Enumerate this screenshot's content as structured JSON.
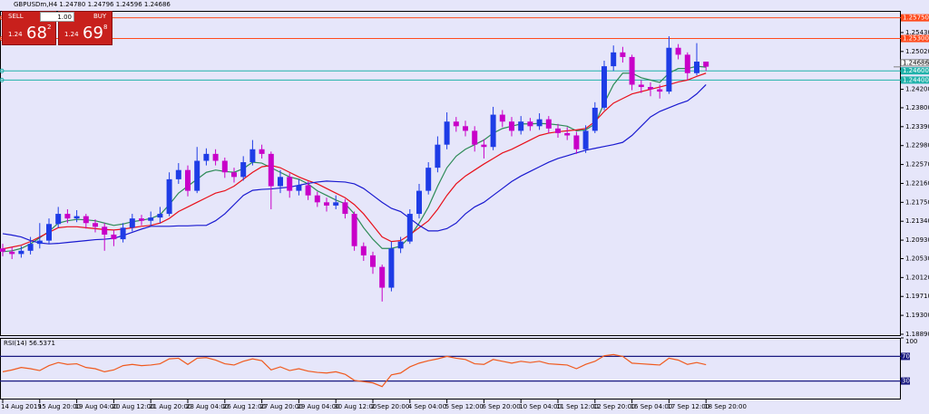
{
  "trade_panel": {
    "sell_label": "SELL",
    "buy_label": "BUY",
    "lot": "1.00",
    "sell_price": {
      "big_figure": "1.24",
      "pips": "68",
      "fraction": "2"
    },
    "buy_price": {
      "big_figure": "1.24",
      "pips": "69",
      "fraction": "8"
    }
  },
  "chart_data": [
    {
      "type": "candlestick",
      "title": "GBPUSDm,H4  1.24780 1.24796 1.24596 1.24686",
      "categories": [
        "14 Aug 2019",
        null,
        null,
        null,
        "15 Aug 20:00",
        null,
        null,
        null,
        "19 Aug 04:00",
        null,
        null,
        null,
        "20 Aug 12:00",
        null,
        null,
        null,
        "21 Aug 20:00",
        null,
        null,
        null,
        "23 Aug 04:00",
        null,
        null,
        null,
        "26 Aug 12:00",
        null,
        null,
        null,
        "27 Aug 20:00",
        null,
        null,
        null,
        "29 Aug 04:00",
        null,
        null,
        null,
        "30 Aug 12:00",
        null,
        null,
        null,
        "2 Sep 20:00",
        null,
        null,
        null,
        "4 Sep 04:00",
        null,
        null,
        null,
        "5 Sep 12:00",
        null,
        null,
        null,
        "6 Sep 20:00",
        null,
        null,
        null,
        "10 Sep 04:00",
        null,
        null,
        null,
        "11 Sep 12:00",
        null,
        null,
        null,
        "12 Sep 20:00",
        null,
        null,
        null,
        "16 Sep 04:00",
        null,
        null,
        null,
        "17 Sep 12:00",
        null,
        null,
        null,
        "18 Sep 20:00"
      ],
      "open": [
        1.2075,
        1.2068,
        1.2063,
        1.207,
        1.2085,
        1.2092,
        1.2128,
        1.215,
        1.214,
        1.2145,
        1.213,
        1.2122,
        1.2105,
        1.2095,
        1.212,
        1.214,
        1.2135,
        1.2142,
        1.215,
        1.2225,
        1.2245,
        1.22,
        1.2265,
        1.228,
        1.2265,
        1.224,
        1.223,
        1.2262,
        1.229,
        1.228,
        1.221,
        1.223,
        1.22,
        1.2212,
        1.219,
        1.2175,
        1.2168,
        1.2175,
        1.215,
        1.208,
        1.206,
        1.2035,
        1.199,
        1.2075,
        1.209,
        1.215,
        1.22,
        1.225,
        1.23,
        1.235,
        1.234,
        1.233,
        1.23,
        1.2295,
        1.2365,
        1.235,
        1.233,
        1.235,
        1.234,
        1.2355,
        1.2335,
        1.2325,
        1.232,
        1.229,
        1.233,
        1.238,
        1.247,
        1.25,
        1.249,
        1.243,
        1.2425,
        1.242,
        1.2415,
        1.251,
        1.2495,
        1.2455,
        1.248
      ],
      "high": [
        1.2085,
        1.2078,
        1.208,
        1.21,
        1.213,
        1.214,
        1.2165,
        1.216,
        1.2158,
        1.215,
        1.2138,
        1.213,
        1.2115,
        1.213,
        1.215,
        1.2148,
        1.2155,
        1.2165,
        1.224,
        1.226,
        1.2255,
        1.2295,
        1.2292,
        1.229,
        1.2272,
        1.225,
        1.2275,
        1.231,
        1.23,
        1.2285,
        1.2245,
        1.2238,
        1.2225,
        1.222,
        1.2198,
        1.2185,
        1.219,
        1.2182,
        1.2155,
        1.2088,
        1.2068,
        1.204,
        1.209,
        1.21,
        1.216,
        1.2215,
        1.2262,
        1.2318,
        1.237,
        1.236,
        1.2352,
        1.234,
        1.2312,
        1.2382,
        1.2375,
        1.236,
        1.2362,
        1.2358,
        1.2368,
        1.2362,
        1.2345,
        1.2338,
        1.2328,
        1.2342,
        1.2392,
        1.2482,
        1.2515,
        1.2512,
        1.2495,
        1.244,
        1.2435,
        1.243,
        1.2535,
        1.2518,
        1.25,
        1.252,
        1.248
      ],
      "low": [
        1.2058,
        1.2052,
        1.2055,
        1.2062,
        1.2075,
        1.2085,
        1.212,
        1.213,
        1.2132,
        1.2118,
        1.211,
        1.207,
        1.208,
        1.2088,
        1.2112,
        1.2125,
        1.2122,
        1.213,
        1.2145,
        1.2215,
        1.2188,
        1.2195,
        1.2255,
        1.2255,
        1.2228,
        1.2218,
        1.2222,
        1.2255,
        1.227,
        1.216,
        1.2195,
        1.2185,
        1.219,
        1.218,
        1.2165,
        1.2155,
        1.216,
        1.214,
        1.207,
        1.2048,
        1.202,
        1.196,
        1.1982,
        1.2065,
        1.2085,
        1.214,
        1.2192,
        1.224,
        1.229,
        1.2328,
        1.2318,
        1.2285,
        1.227,
        1.2288,
        1.2338,
        1.2318,
        1.2322,
        1.233,
        1.2332,
        1.2325,
        1.2315,
        1.231,
        1.228,
        1.2282,
        1.2325,
        1.2375,
        1.246,
        1.2478,
        1.2418,
        1.2412,
        1.2405,
        1.24,
        1.241,
        1.2485,
        1.244,
        1.245,
        1.246
      ],
      "close": [
        1.2068,
        1.2063,
        1.207,
        1.2085,
        1.2092,
        1.2128,
        1.215,
        1.214,
        1.2145,
        1.213,
        1.2122,
        1.2105,
        1.2095,
        1.212,
        1.214,
        1.2135,
        1.2142,
        1.215,
        1.2225,
        1.2245,
        1.22,
        1.2265,
        1.228,
        1.2265,
        1.224,
        1.223,
        1.2262,
        1.229,
        1.228,
        1.221,
        1.223,
        1.22,
        1.2212,
        1.219,
        1.2175,
        1.2168,
        1.2175,
        1.215,
        1.208,
        1.206,
        1.2035,
        1.199,
        1.2075,
        1.209,
        1.215,
        1.22,
        1.225,
        1.23,
        1.235,
        1.234,
        1.233,
        1.23,
        1.2295,
        1.2365,
        1.235,
        1.233,
        1.235,
        1.234,
        1.2355,
        1.2335,
        1.2325,
        1.232,
        1.229,
        1.233,
        1.238,
        1.247,
        1.25,
        1.249,
        1.243,
        1.2425,
        1.242,
        1.2415,
        1.251,
        1.2495,
        1.2455,
        1.248,
        1.2469
      ],
      "up_color": "#1e3ce6",
      "down_color": "#c800c8",
      "series": [
        {
          "color": "#2e8b57",
          "values": [
            1.2068,
            1.207,
            1.2075,
            1.2085,
            1.2098,
            1.2112,
            1.213,
            1.2135,
            1.2138,
            1.2137,
            1.2135,
            1.213,
            1.2125,
            1.2128,
            1.2133,
            1.2136,
            1.214,
            1.2148,
            1.217,
            1.2195,
            1.221,
            1.2225,
            1.224,
            1.2245,
            1.2242,
            1.224,
            1.2248,
            1.2262,
            1.226,
            1.225,
            1.224,
            1.223,
            1.2225,
            1.2215,
            1.22,
            1.219,
            1.218,
            1.2172,
            1.215,
            1.212,
            1.2095,
            1.2075,
            1.2075,
            1.208,
            1.21,
            1.213,
            1.2165,
            1.221,
            1.225,
            1.2275,
            1.229,
            1.23,
            1.231,
            1.2325,
            1.2335,
            1.234,
            1.2345,
            1.2345,
            1.2346,
            1.2345,
            1.2343,
            1.234,
            1.233,
            1.2332,
            1.2345,
            1.239,
            1.243,
            1.2455,
            1.2455,
            1.2445,
            1.244,
            1.2435,
            1.2455,
            1.2465,
            1.2465,
            1.247,
            1.2468
          ]
        },
        {
          "color": "#e8101a",
          "values": [
            1.2074,
            1.2078,
            1.2082,
            1.209,
            1.21,
            1.211,
            1.212,
            1.2122,
            1.2122,
            1.212,
            1.2118,
            1.2116,
            1.2115,
            1.2117,
            1.212,
            1.2123,
            1.2125,
            1.213,
            1.214,
            1.2155,
            1.2165,
            1.2175,
            1.2185,
            1.2195,
            1.22,
            1.221,
            1.2225,
            1.224,
            1.2252,
            1.2255,
            1.225,
            1.224,
            1.223,
            1.2222,
            1.2215,
            1.2205,
            1.2195,
            1.2185,
            1.217,
            1.215,
            1.2125,
            1.21,
            1.209,
            1.2092,
            1.2105,
            1.212,
            1.2135,
            1.216,
            1.219,
            1.2215,
            1.2232,
            1.2245,
            1.2258,
            1.227,
            1.2282,
            1.229,
            1.23,
            1.231,
            1.232,
            1.2325,
            1.2328,
            1.233,
            1.2332,
            1.2335,
            1.235,
            1.2372,
            1.239,
            1.24,
            1.241,
            1.2415,
            1.242,
            1.2425,
            1.243,
            1.2436,
            1.244,
            1.2448,
            1.2455
          ]
        },
        {
          "color": "#1a1ad0",
          "values": [
            1.2107,
            1.2104,
            1.21,
            1.2092,
            1.2087,
            1.2085,
            1.2086,
            1.2088,
            1.209,
            1.2092,
            1.2094,
            1.2095,
            1.2097,
            1.2103,
            1.211,
            1.2117,
            1.2123,
            1.2123,
            1.2123,
            1.2124,
            1.2124,
            1.2125,
            1.2125,
            1.2135,
            1.215,
            1.217,
            1.219,
            1.2201,
            1.2203,
            1.2204,
            1.2206,
            1.2208,
            1.2212,
            1.2216,
            1.2219,
            1.2221,
            1.222,
            1.2219,
            1.2215,
            1.2205,
            1.219,
            1.2175,
            1.2162,
            1.2155,
            1.214,
            1.2125,
            1.2113,
            1.2113,
            1.2118,
            1.213,
            1.215,
            1.2165,
            1.2175,
            1.219,
            1.2205,
            1.222,
            1.2232,
            1.2242,
            1.2252,
            1.2262,
            1.227,
            1.2276,
            1.2282,
            1.2288,
            1.2292,
            1.2296,
            1.23,
            1.2305,
            1.232,
            1.234,
            1.236,
            1.2372,
            1.238,
            1.2388,
            1.2395,
            1.241,
            1.243
          ]
        }
      ],
      "ylim": [
        1.1887,
        1.259
      ],
      "yticks": [
        {
          "value": 1.2543,
          "label": "1.25430"
        },
        {
          "value": 1.2502,
          "label": "1.25020"
        },
        {
          "value": 1.242,
          "label": "1.24200"
        },
        {
          "value": 1.238,
          "label": "1.23800"
        },
        {
          "value": 1.2339,
          "label": "1.23390"
        },
        {
          "value": 1.2298,
          "label": "1.22980"
        },
        {
          "value": 1.2257,
          "label": "1.22570"
        },
        {
          "value": 1.2216,
          "label": "1.22160"
        },
        {
          "value": 1.2175,
          "label": "1.21750"
        },
        {
          "value": 1.2134,
          "label": "1.21340"
        },
        {
          "value": 1.2093,
          "label": "1.20930"
        },
        {
          "value": 1.2053,
          "label": "1.20530"
        },
        {
          "value": 1.2012,
          "label": "1.20120"
        },
        {
          "value": 1.1971,
          "label": "1.19710"
        },
        {
          "value": 1.193,
          "label": "1.19300"
        },
        {
          "value": 1.1889,
          "label": "1.18890"
        }
      ],
      "levels": [
        {
          "value": 1.2575,
          "label": "1.25750",
          "color": "#ff4a1c"
        },
        {
          "value": 1.253,
          "label": "1.25300",
          "color": "#ff4a1c"
        },
        {
          "value": 1.246,
          "label": "1.24600",
          "color": "#20b2aa"
        },
        {
          "value": 1.244,
          "label": "1.24400",
          "color": "#20b2aa"
        }
      ],
      "current_price": 1.24686
    },
    {
      "type": "line",
      "title": "RSI(14) 56.5371",
      "values": [
        45,
        48,
        52,
        50,
        47,
        55,
        60,
        57,
        58,
        52,
        50,
        45,
        48,
        55,
        57,
        55,
        56,
        58,
        66,
        67,
        57,
        67,
        68,
        64,
        58,
        56,
        62,
        66,
        63,
        48,
        53,
        47,
        50,
        46,
        44,
        43,
        45,
        41,
        31,
        29,
        27,
        21,
        40,
        43,
        53,
        59,
        63,
        66,
        70,
        67,
        65,
        58,
        57,
        65,
        62,
        59,
        62,
        60,
        62,
        58,
        57,
        56,
        50,
        57,
        62,
        71,
        73,
        70,
        59,
        58,
        57,
        56,
        67,
        64,
        57,
        60,
        56.5371
      ],
      "color": "#f05a1e",
      "ylim": [
        0,
        100
      ],
      "yticks": [
        100
      ],
      "levels": [
        70,
        30
      ],
      "level_color": "#1a1a80"
    }
  ]
}
